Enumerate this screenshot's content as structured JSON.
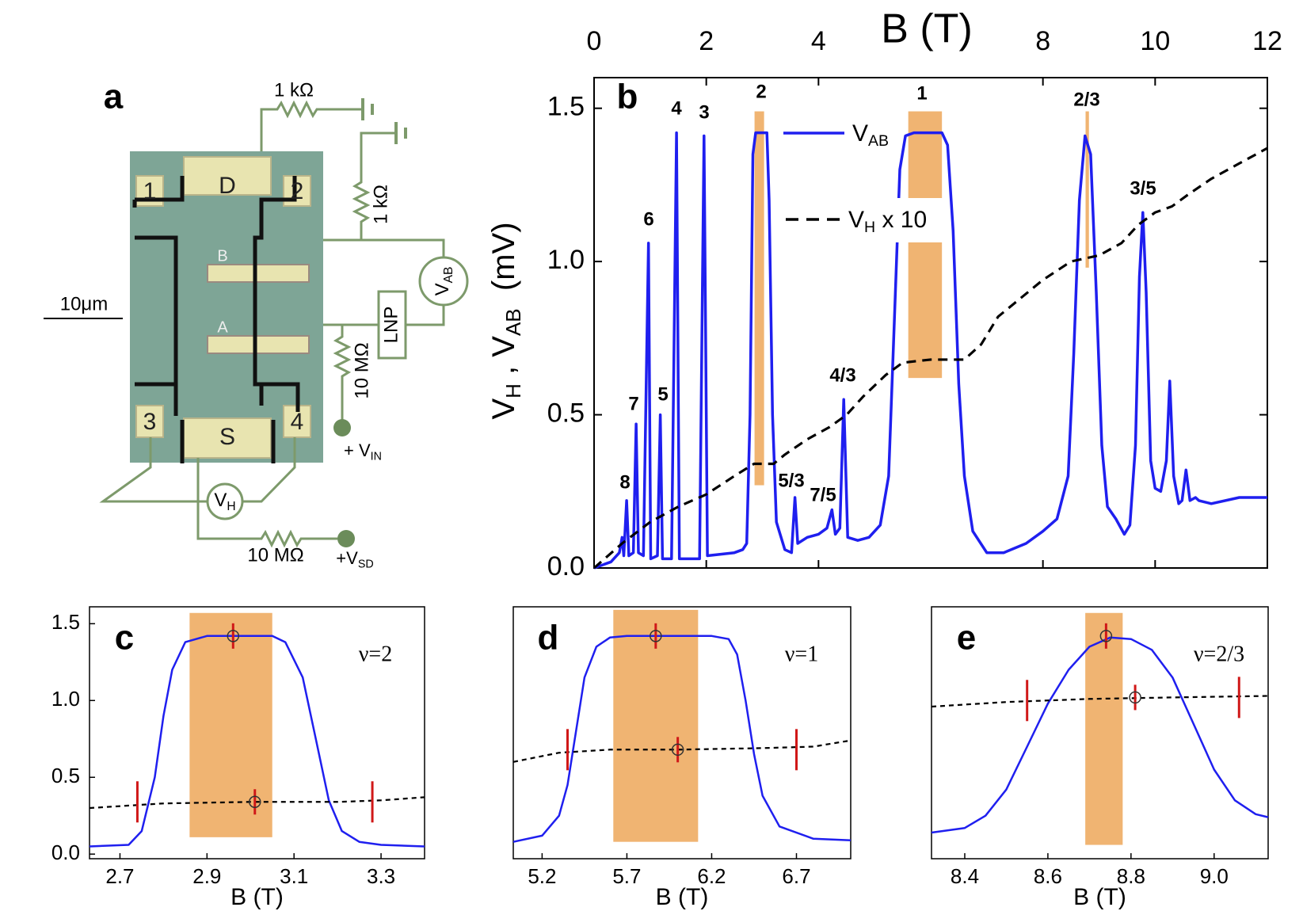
{
  "panel_a": {
    "label": "a",
    "resistor_top": "1 kΩ",
    "resistor_right": "1 kΩ",
    "resistor_lnp": "10 MΩ",
    "resistor_sd": "10 MΩ",
    "scale_bar": "10μm",
    "contacts": [
      "D",
      "S",
      "1",
      "2",
      "3",
      "4",
      "B",
      "A"
    ],
    "amplifier": "LNP",
    "meter_ab": [
      "V",
      "AB"
    ],
    "meter_h": [
      "V",
      "H"
    ],
    "source_in": [
      "+ V",
      "IN"
    ],
    "source_sd": [
      "+V",
      "SD"
    ]
  },
  "chart_data": [
    {
      "type": "line",
      "panel_label": "b",
      "x_label": "B (T)",
      "y_label": [
        "V",
        "H",
        " , V",
        "AB",
        "  (mV)"
      ],
      "xlim": [
        0,
        12
      ],
      "ylim": [
        0,
        1.6
      ],
      "xticks": [
        0,
        2,
        4,
        8,
        10,
        12
      ],
      "yticks": [
        {
          "value": 0,
          "label": "0.0"
        },
        0.5,
        {
          "value": 1,
          "label": "1.0"
        },
        1.5
      ],
      "annotations": [
        "8",
        "7",
        "6",
        "5",
        "4",
        "3",
        "2",
        "5/3",
        "7/5",
        "4/3",
        "1",
        "2/3",
        "3/5"
      ],
      "bands": [
        {
          "x": [
            2.86,
            3.03
          ],
          "y": [
            0.27,
            1.49
          ]
        },
        {
          "x": [
            5.6,
            6.2
          ],
          "y": [
            0.62,
            1.49
          ]
        },
        {
          "x": [
            8.76,
            8.82
          ],
          "y": [
            0.98,
            1.49
          ]
        }
      ],
      "series": [
        {
          "name": [
            "V",
            "AB"
          ],
          "color": "#1f1fef",
          "dashed": false,
          "x": [
            0,
            0.3,
            0.45,
            0.5,
            0.53,
            0.58,
            0.62,
            0.7,
            0.75,
            0.79,
            0.88,
            0.97,
            1.01,
            1.13,
            1.18,
            1.22,
            1.38,
            1.47,
            1.52,
            1.88,
            1.96,
            2.02,
            2.5,
            2.65,
            2.72,
            2.78,
            2.83,
            2.88,
            3.08,
            3.12,
            3.18,
            3.25,
            3.4,
            3.52,
            3.58,
            3.63,
            3.8,
            4.0,
            4.15,
            4.24,
            4.3,
            4.38,
            4.45,
            4.52,
            4.7,
            4.9,
            5.1,
            5.25,
            5.35,
            5.45,
            5.55,
            5.7,
            6.2,
            6.3,
            6.4,
            6.5,
            6.6,
            6.75,
            7.0,
            7.3,
            7.7,
            8.0,
            8.25,
            8.45,
            8.55,
            8.65,
            8.75,
            8.85,
            8.95,
            9.05,
            9.15,
            9.3,
            9.45,
            9.55,
            9.65,
            9.72,
            9.78,
            9.84,
            9.92,
            10.0,
            10.1,
            10.2,
            10.26,
            10.33,
            10.42,
            10.48,
            10.55,
            10.62,
            10.72,
            10.78,
            11.0,
            11.5,
            12
          ],
          "values": [
            0,
            0.02,
            0.05,
            0.1,
            0.04,
            0.22,
            0.04,
            0.05,
            0.47,
            0.05,
            0.04,
            1.06,
            0.03,
            0.04,
            0.5,
            0.03,
            0.03,
            1.42,
            0.03,
            0.03,
            1.41,
            0.04,
            0.05,
            0.06,
            0.08,
            0.5,
            1.35,
            1.42,
            1.42,
            1.2,
            0.5,
            0.15,
            0.06,
            0.05,
            0.23,
            0.08,
            0.1,
            0.11,
            0.13,
            0.19,
            0.11,
            0.13,
            0.55,
            0.1,
            0.09,
            0.1,
            0.14,
            0.3,
            0.8,
            1.3,
            1.41,
            1.42,
            1.42,
            1.38,
            1.1,
            0.6,
            0.3,
            0.12,
            0.05,
            0.05,
            0.08,
            0.12,
            0.16,
            0.3,
            0.7,
            1.2,
            1.41,
            1.35,
            0.9,
            0.4,
            0.2,
            0.16,
            0.11,
            0.14,
            0.4,
            0.95,
            1.16,
            0.9,
            0.35,
            0.26,
            0.25,
            0.35,
            0.61,
            0.3,
            0.21,
            0.22,
            0.32,
            0.22,
            0.23,
            0.22,
            0.21,
            0.23,
            0.23
          ]
        },
        {
          "name": [
            "V",
            "H",
            " x 10"
          ],
          "color": "#000000",
          "dashed": true,
          "x": [
            0,
            0.5,
            1,
            1.5,
            2,
            2.5,
            2.85,
            3.2,
            3.4,
            3.8,
            4.2,
            4.5,
            4.8,
            5.2,
            5.5,
            6.0,
            6.6,
            6.9,
            7.2,
            7.6,
            8.0,
            8.5,
            9.0,
            9.4,
            9.7,
            10.0,
            10.3,
            10.6,
            11.0,
            11.5,
            12
          ],
          "values": [
            0,
            0.08,
            0.15,
            0.2,
            0.24,
            0.3,
            0.34,
            0.34,
            0.37,
            0.42,
            0.46,
            0.5,
            0.56,
            0.63,
            0.67,
            0.68,
            0.68,
            0.73,
            0.82,
            0.88,
            0.94,
            1.0,
            1.02,
            1.06,
            1.12,
            1.16,
            1.18,
            1.22,
            1.27,
            1.32,
            1.37
          ]
        }
      ]
    },
    {
      "type": "line",
      "panel_label": "c",
      "annotation": "ν=2",
      "x_label": "B (T)",
      "xlim": [
        2.63,
        3.4
      ],
      "ylim": [
        -0.03,
        1.61
      ],
      "xticks": [
        2.7,
        2.9,
        3.1,
        3.3
      ],
      "yticks": [
        {
          "value": 0,
          "label": "0.0"
        },
        0.5,
        {
          "value": 1,
          "label": "1.0"
        },
        1.5
      ],
      "bands": [
        {
          "x": [
            2.86,
            3.05
          ],
          "y": [
            0.11,
            1.57
          ]
        }
      ],
      "circled_markers": {
        "x": [
          2.96,
          3.01
        ],
        "y": [
          1.42,
          0.34
        ]
      },
      "markers": {
        "x": [
          2.74,
          3.28
        ],
        "y": [
          0.34,
          0.34
        ]
      },
      "series": [
        {
          "color": "#1f1fef",
          "dashed": false,
          "x": [
            2.63,
            2.72,
            2.75,
            2.78,
            2.8,
            2.82,
            2.85,
            2.9,
            3.05,
            3.08,
            3.12,
            3.15,
            3.18,
            3.21,
            3.25,
            3.3,
            3.4
          ],
          "values": [
            0.05,
            0.06,
            0.15,
            0.5,
            0.9,
            1.2,
            1.38,
            1.42,
            1.42,
            1.38,
            1.15,
            0.75,
            0.35,
            0.15,
            0.08,
            0.06,
            0.05
          ]
        },
        {
          "color": "#000000",
          "dashed": true,
          "x": [
            2.63,
            2.8,
            3.0,
            3.2,
            3.3,
            3.4
          ],
          "values": [
            0.3,
            0.33,
            0.34,
            0.34,
            0.35,
            0.37
          ]
        }
      ]
    },
    {
      "type": "line",
      "panel_label": "d",
      "annotation": "ν=1",
      "x_label": "B (T)",
      "xlim": [
        5.03,
        7.02
      ],
      "ylim": [
        -0.03,
        1.61
      ],
      "xticks": [
        5.2,
        5.7,
        6.2,
        6.7
      ],
      "bands": [
        {
          "x": [
            5.62,
            6.12
          ],
          "y": [
            0.08,
            1.59
          ]
        }
      ],
      "circled_markers": {
        "x": [
          5.87,
          6.0
        ],
        "y": [
          1.42,
          0.68
        ]
      },
      "markers": {
        "x": [
          5.35,
          6.7
        ],
        "y": [
          0.68,
          0.68
        ]
      },
      "series": [
        {
          "color": "#1f1fef",
          "dashed": false,
          "x": [
            5.03,
            5.2,
            5.3,
            5.35,
            5.4,
            5.45,
            5.52,
            5.6,
            5.7,
            6.2,
            6.3,
            6.35,
            6.4,
            6.45,
            6.5,
            6.6,
            6.8,
            7.02
          ],
          "values": [
            0.08,
            0.12,
            0.25,
            0.45,
            0.8,
            1.15,
            1.35,
            1.41,
            1.42,
            1.42,
            1.4,
            1.3,
            1.0,
            0.65,
            0.38,
            0.18,
            0.1,
            0.09
          ]
        },
        {
          "color": "#000000",
          "dashed": true,
          "x": [
            5.03,
            5.3,
            5.6,
            6.0,
            6.5,
            6.8,
            7.02
          ],
          "values": [
            0.6,
            0.66,
            0.68,
            0.68,
            0.69,
            0.7,
            0.74
          ]
        }
      ]
    },
    {
      "type": "line",
      "panel_label": "e",
      "annotation": "ν=2/3",
      "x_label": "B (T)",
      "xlim": [
        8.32,
        9.13
      ],
      "ylim": [
        -0.03,
        1.61
      ],
      "xticks": [
        8.4,
        8.6,
        8.8,
        {
          "value": 9,
          "label": "9.0"
        }
      ],
      "bands": [
        {
          "x": [
            8.69,
            8.78
          ],
          "y": [
            0.06,
            1.57
          ]
        }
      ],
      "circled_markers": {
        "x": [
          8.74,
          8.81
        ],
        "y": [
          1.42,
          1.02
        ]
      },
      "markers": {
        "x": [
          8.55,
          9.06
        ],
        "y": [
          1.0,
          1.02
        ]
      },
      "series": [
        {
          "color": "#1f1fef",
          "dashed": false,
          "x": [
            8.32,
            8.4,
            8.45,
            8.5,
            8.55,
            8.6,
            8.65,
            8.7,
            8.75,
            8.8,
            8.85,
            8.9,
            8.95,
            9.0,
            9.05,
            9.1,
            9.13
          ],
          "values": [
            0.14,
            0.17,
            0.25,
            0.42,
            0.7,
            0.98,
            1.2,
            1.35,
            1.41,
            1.4,
            1.33,
            1.15,
            0.85,
            0.55,
            0.35,
            0.26,
            0.24
          ]
        },
        {
          "color": "#000000",
          "dashed": true,
          "x": [
            8.32,
            8.5,
            8.7,
            8.9,
            9.13
          ],
          "values": [
            0.96,
            0.99,
            1.01,
            1.02,
            1.03
          ]
        }
      ]
    }
  ]
}
